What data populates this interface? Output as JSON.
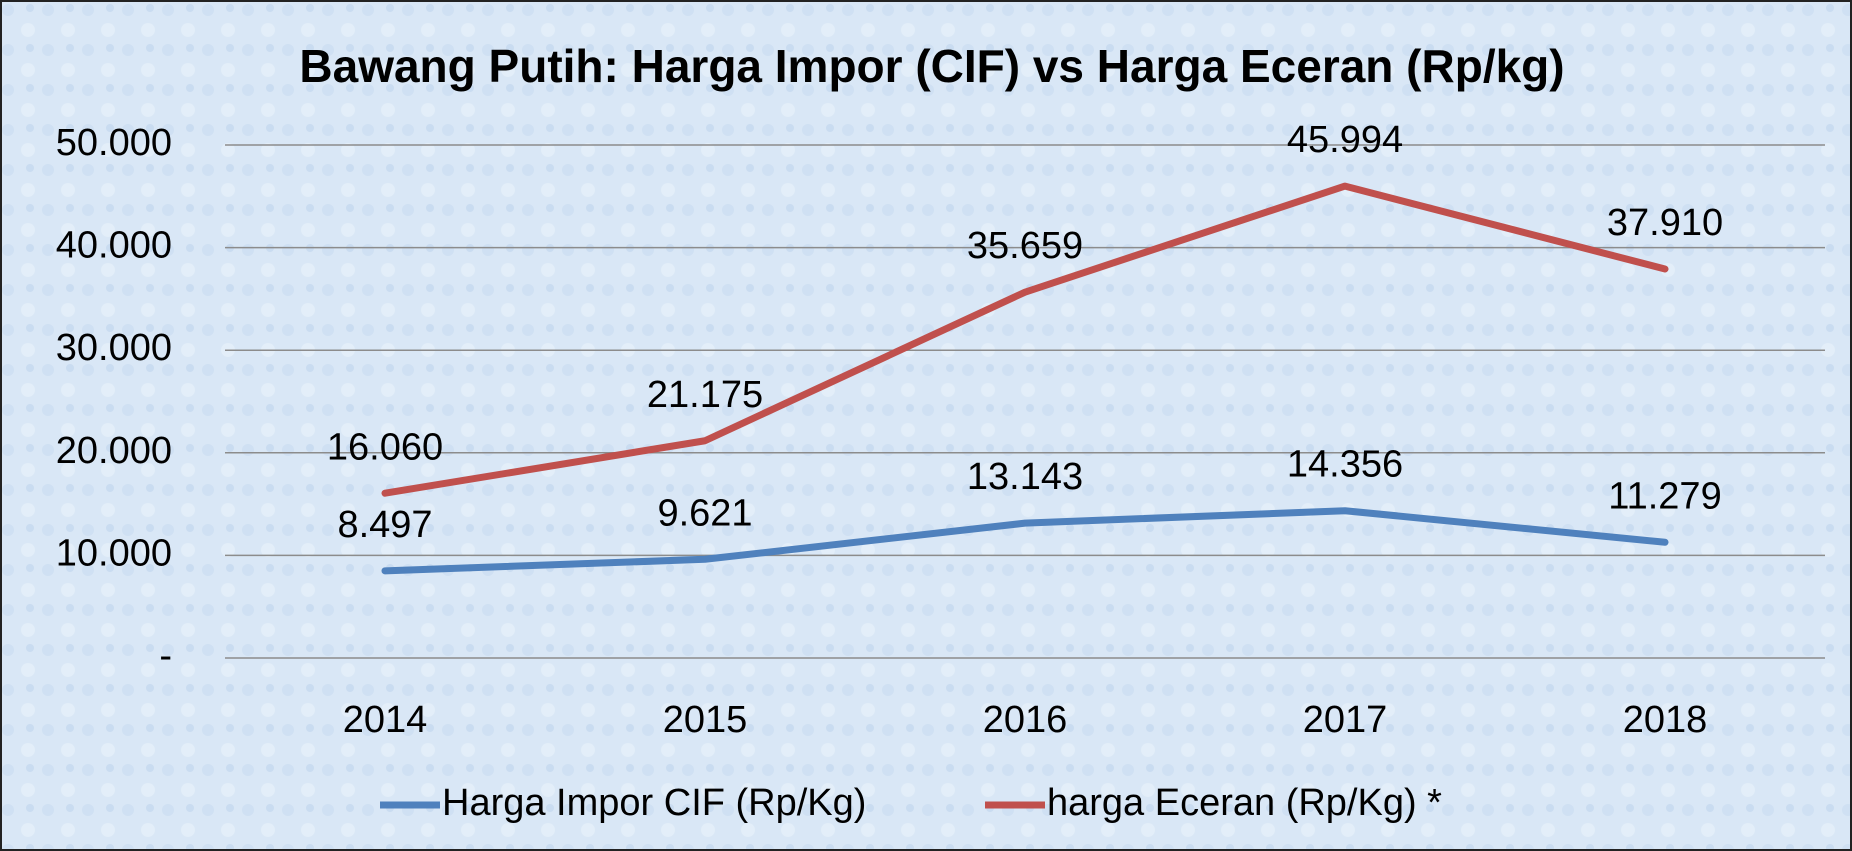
{
  "chart_data": {
    "type": "line",
    "title": "Bawang Putih: Harga Impor (CIF) vs Harga Eceran (Rp/kg)",
    "categories": [
      "2014",
      "2015",
      "2016",
      "2017",
      "2018"
    ],
    "series": [
      {
        "name": "Harga Impor CIF (Rp/Kg)",
        "color": "#4f81bd",
        "values": [
          8497,
          9621,
          13143,
          14356,
          11279
        ],
        "value_labels": [
          "8.497",
          "9.621",
          "13.143",
          "14.356",
          "11.279"
        ]
      },
      {
        "name": "harga Eceran (Rp/Kg) *",
        "color": "#c0504d",
        "values": [
          16060,
          21175,
          35659,
          45994,
          37910
        ],
        "value_labels": [
          "16.060",
          "21.175",
          "35.659",
          "45.994",
          "37.910"
        ]
      }
    ],
    "ylim": [
      0,
      50000
    ],
    "yticks": [
      {
        "value": 0,
        "label": "-"
      },
      {
        "value": 10000,
        "label": "10.000"
      },
      {
        "value": 20000,
        "label": "20.000"
      },
      {
        "value": 30000,
        "label": "30.000"
      },
      {
        "value": 40000,
        "label": "40.000"
      },
      {
        "value": 50000,
        "label": "50.000"
      }
    ],
    "grid": true,
    "legend": "bottom"
  }
}
